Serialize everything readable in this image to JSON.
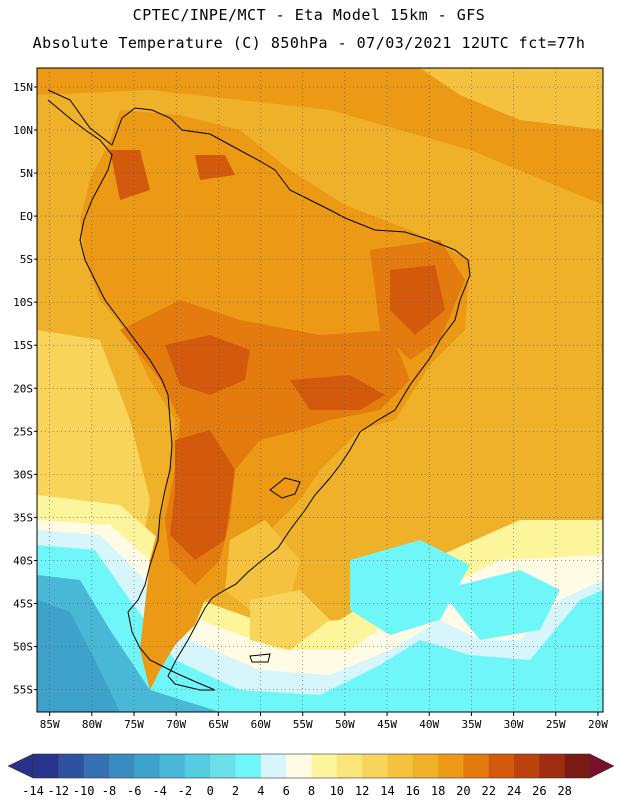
{
  "header": {
    "line1": "CPTEC/INPE/MCT -  Eta Model 15km - GFS",
    "line2": "Absolute Temperature (C) 850hPa - 07/03/2021 12UTC fct=77h"
  },
  "lat_labels": [
    "15N",
    "10N",
    "5N",
    "EQ",
    "5S",
    "10S",
    "15S",
    "20S",
    "25S",
    "30S",
    "35S",
    "40S",
    "45S",
    "50S",
    "55S"
  ],
  "lon_labels": [
    "85W",
    "80W",
    "75W",
    "70W",
    "65W",
    "60W",
    "55W",
    "50W",
    "45W",
    "40W",
    "35W",
    "30W",
    "25W",
    "20W"
  ],
  "colorbar": {
    "labels": [
      "-14",
      "-12",
      "-10",
      "-8",
      "-6",
      "-4",
      "-2",
      "0",
      "2",
      "4",
      "6",
      "8",
      "10",
      "12",
      "14",
      "16",
      "18",
      "20",
      "22",
      "24",
      "26",
      "28"
    ],
    "colors": [
      "#27338c",
      "#2e51a0",
      "#3470b2",
      "#3a8bc0",
      "#3fa2cb",
      "#48b8d6",
      "#55cde0",
      "#6be0e8",
      "#6ff6f9",
      "#d6f6fb",
      "#fffbe5",
      "#fdf59c",
      "#fbe47a",
      "#f8d45a",
      "#f4c23e",
      "#f0b12a",
      "#ec9a16",
      "#e47b0e",
      "#d35a0c",
      "#bc420d",
      "#9d2c10",
      "#7a1a12"
    ],
    "left_arrow": "#2a3288",
    "right_arrow": "#7c0f2c"
  },
  "colors": {
    "ocean_warm": "#f0b12a",
    "land_hot": "#e47b0e",
    "land_very_hot": "#d35a0c",
    "patagonia_mild": "#f8d45a",
    "cool_band": "#fdf59c",
    "pale": "#fffbe5",
    "cold_ocean": "#6be0e8",
    "colder_ocean": "#48b8d6",
    "cold_core": "#3fa2cb",
    "coast": "#000000",
    "grid": "#555555"
  }
}
